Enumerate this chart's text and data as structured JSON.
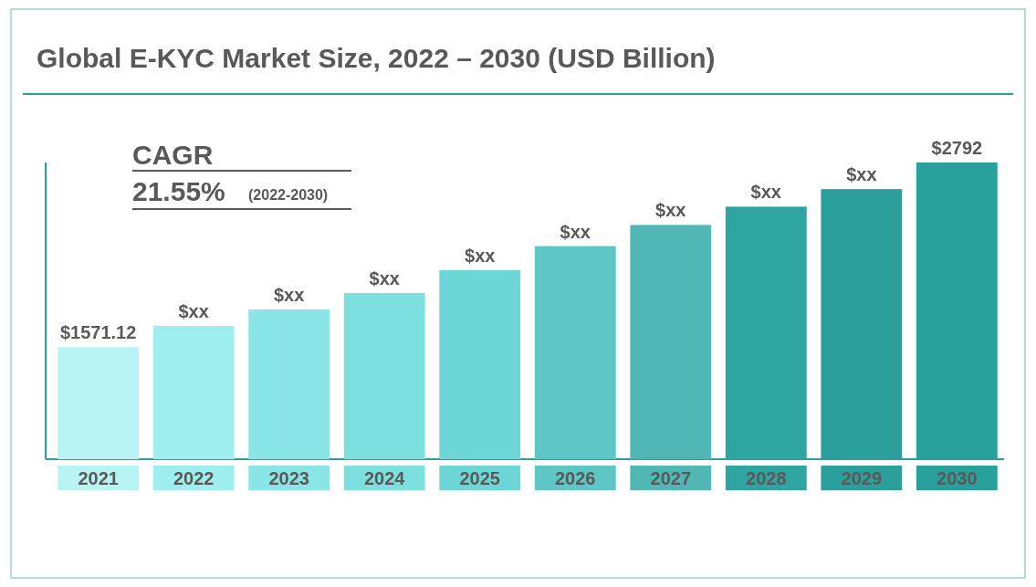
{
  "chart_data": {
    "type": "bar",
    "title": "Global E-KYC Market Size, 2022 – 2030 (USD Billion)",
    "categories": [
      "2021",
      "2022",
      "2023",
      "2024",
      "2025",
      "2026",
      "2027",
      "2028",
      "2029",
      "2030"
    ],
    "values": [
      1571.12,
      1711,
      1820,
      1929,
      2081,
      2239,
      2379,
      2500,
      2616,
      2792
    ],
    "colors": [
      "#b9f4f4",
      "#9feeef",
      "#8ae6e6",
      "#7ddfde",
      "#6dd6d6",
      "#5ec7c5",
      "#50b7b5",
      "#2fa5a2",
      "#2a9f9c",
      "#29a09c"
    ],
    "ylim": [
      830,
      2792
    ],
    "tick_labels": "x",
    "value_labels": [
      "$1571.12",
      "$xx",
      "$xx",
      "$xx",
      "$xx",
      "$xx",
      "$xx",
      "$xx",
      "$xx",
      "$2792"
    ],
    "annotations": [
      "CAGR",
      "21.55%",
      "(2022-2030)"
    ]
  }
}
